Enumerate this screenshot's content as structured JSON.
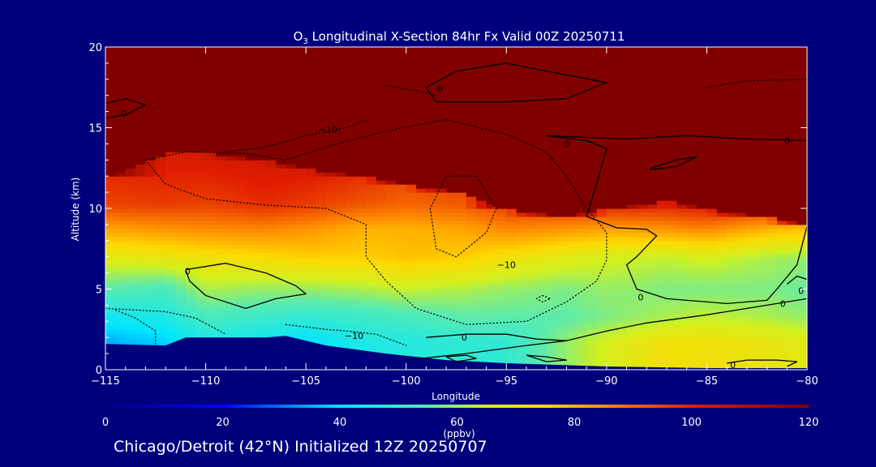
{
  "chart_data": {
    "type": "heatmap",
    "title": {
      "species": "O",
      "subscript": "3",
      "rest": " Longitudinal X-Section 84hr  Fx Valid 00Z 20250711"
    },
    "xlabel": "Longitude",
    "ylabel": "Altitude (km)",
    "xlim": [
      -115,
      -80
    ],
    "ylim": [
      0,
      20
    ],
    "x_ticks": [
      -115,
      -110,
      -105,
      -100,
      -95,
      -90,
      -85,
      -80
    ],
    "x_tick_labels": [
      "−115",
      "−110",
      "−105",
      "−100",
      "−95",
      "−90",
      "−85",
      "−80"
    ],
    "y_ticks": [
      0,
      5,
      10,
      15,
      20
    ],
    "colorbar": {
      "label": "(ppbv)",
      "min": 0,
      "max": 120,
      "ticks": [
        0,
        20,
        40,
        60,
        80,
        100,
        120
      ]
    },
    "columns": [
      {
        "lon": -115,
        "top": 12.0,
        "v": [
          null,
          35,
          42,
          55,
          68,
          82,
          95,
          105,
          120
        ]
      },
      {
        "lon": -112,
        "top": 13.5,
        "v": [
          null,
          38,
          45,
          52,
          70,
          84,
          96,
          106,
          120
        ]
      },
      {
        "lon": -110,
        "top": 13.5,
        "v": [
          null,
          44,
          52,
          62,
          72,
          85,
          95,
          108,
          120
        ]
      },
      {
        "lon": -107,
        "top": 13.0,
        "v": [
          null,
          42,
          50,
          60,
          74,
          86,
          98,
          108,
          120
        ]
      },
      {
        "lon": -105,
        "top": 12.5,
        "v": [
          null,
          40,
          48,
          60,
          76,
          84,
          96,
          110,
          120
        ]
      },
      {
        "lon": -102,
        "top": 12.0,
        "v": [
          null,
          45,
          50,
          62,
          76,
          80,
          92,
          108,
          120
        ]
      },
      {
        "lon": -100,
        "top": 11.5,
        "v": [
          null,
          46,
          52,
          64,
          78,
          80,
          90,
          104,
          120
        ]
      },
      {
        "lon": -97,
        "top": 11.0,
        "v": [
          null,
          48,
          55,
          62,
          76,
          82,
          92,
          104,
          120
        ]
      },
      {
        "lon": -95,
        "top": 10.0,
        "v": [
          null,
          48,
          55,
          60,
          72,
          86,
          96,
          108,
          120
        ]
      },
      {
        "lon": -92,
        "top": 9.5,
        "v": [
          null,
          60,
          55,
          58,
          68,
          84,
          98,
          110,
          120
        ]
      },
      {
        "lon": -90,
        "top": 10.0,
        "v": [
          null,
          66,
          58,
          60,
          66,
          82,
          100,
          110,
          120
        ]
      },
      {
        "lon": -87,
        "top": 10.5,
        "v": [
          null,
          72,
          62,
          58,
          64,
          84,
          100,
          110,
          120
        ]
      },
      {
        "lon": -85,
        "top": 10.0,
        "v": [
          null,
          72,
          64,
          58,
          66,
          86,
          102,
          110,
          120
        ]
      },
      {
        "lon": -82,
        "top": 9.5,
        "v": [
          null,
          70,
          62,
          58,
          62,
          80,
          100,
          110,
          120
        ]
      },
      {
        "lon": -80,
        "top": 9.0,
        "v": [
          null,
          68,
          60,
          56,
          60,
          78,
          98,
          110,
          120
        ]
      }
    ],
    "terrain": [
      [
        -115,
        1.6
      ],
      [
        -112,
        1.5
      ],
      [
        -111,
        2.0
      ],
      [
        -107,
        2.0
      ],
      [
        -106,
        2.1
      ],
      [
        -104,
        1.5
      ],
      [
        -101,
        1.0
      ],
      [
        -98,
        0.6
      ],
      [
        -95,
        0.4
      ],
      [
        -90,
        0.2
      ],
      [
        -85,
        0.1
      ],
      [
        -80,
        0.1
      ]
    ],
    "contours": [
      {
        "level": "0",
        "style": "solid",
        "points": [
          [
            -111,
            6.2
          ],
          [
            -109,
            6.6
          ],
          [
            -107,
            6.0
          ],
          [
            -105.5,
            5.2
          ],
          [
            -105,
            4.7
          ],
          [
            -106.5,
            4.4
          ],
          [
            -108,
            3.8
          ],
          [
            -110,
            4.6
          ],
          [
            -110.8,
            5.5
          ],
          [
            -111,
            6.2
          ]
        ]
      },
      {
        "level": "0",
        "style": "solid",
        "points": [
          [
            -115,
            16.5
          ],
          [
            -114,
            16.8
          ],
          [
            -113,
            16.4
          ],
          [
            -114,
            15.8
          ],
          [
            -115,
            15.6
          ]
        ]
      },
      {
        "level": "0",
        "style": "solid",
        "points": [
          [
            -99,
            17.5
          ],
          [
            -97.5,
            18.5
          ],
          [
            -95,
            19.0
          ],
          [
            -93,
            18.5
          ],
          [
            -90,
            17.8
          ],
          [
            -92,
            16.8
          ],
          [
            -95,
            16.6
          ],
          [
            -98.5,
            16.6
          ],
          [
            -99,
            17.5
          ]
        ]
      },
      {
        "level": "0",
        "style": "solid",
        "points": [
          [
            -93,
            14.5
          ],
          [
            -91,
            14.2
          ],
          [
            -90,
            13.7
          ],
          [
            -90.5,
            11.5
          ],
          [
            -91,
            9.5
          ],
          [
            -89.5,
            8.8
          ],
          [
            -88,
            8.7
          ],
          [
            -87.5,
            8.3
          ],
          [
            -88.5,
            7.0
          ],
          [
            -89,
            6.5
          ],
          [
            -88.5,
            5.0
          ],
          [
            -87,
            4.4
          ],
          [
            -84,
            4.1
          ],
          [
            -82,
            4.3
          ],
          [
            -81.5,
            5.0
          ],
          [
            -80.5,
            6.5
          ],
          [
            -80,
            8.9
          ]
        ]
      },
      {
        "level": "0",
        "style": "solid",
        "points": [
          [
            -93,
            14.5
          ],
          [
            -89,
            14.3
          ],
          [
            -86,
            14.5
          ],
          [
            -83,
            14.3
          ],
          [
            -80,
            14.2
          ]
        ]
      },
      {
        "level": "0",
        "style": "solid",
        "points": [
          [
            -87.8,
            12.5
          ],
          [
            -86.5,
            13.0
          ],
          [
            -85.5,
            13.2
          ],
          [
            -86.5,
            12.6
          ],
          [
            -87.8,
            12.4
          ],
          [
            -87.8,
            12.5
          ]
        ]
      },
      {
        "level": "0",
        "style": "solid",
        "points": [
          [
            -100,
            0.6
          ],
          [
            -97,
            1.0
          ],
          [
            -94,
            1.5
          ],
          [
            -92,
            1.8
          ],
          [
            -90,
            2.4
          ],
          [
            -88,
            2.9
          ],
          [
            -85,
            3.4
          ],
          [
            -83,
            3.8
          ],
          [
            -81,
            4.2
          ],
          [
            -80,
            4.4
          ]
        ]
      },
      {
        "level": "0",
        "style": "solid",
        "points": [
          [
            -99,
            2.0
          ],
          [
            -97,
            2.2
          ],
          [
            -95,
            2.2
          ],
          [
            -93.5,
            1.9
          ],
          [
            -92,
            1.8
          ]
        ]
      },
      {
        "level": "0",
        "style": "solid",
        "points": [
          [
            -98,
            0.8
          ],
          [
            -97,
            0.9
          ],
          [
            -96.5,
            0.7
          ],
          [
            -97.5,
            0.5
          ],
          [
            -98,
            0.8
          ]
        ]
      },
      {
        "level": "0",
        "style": "solid",
        "points": [
          [
            -94,
            0.9
          ],
          [
            -93,
            0.8
          ],
          [
            -92,
            0.6
          ],
          [
            -93,
            0.5
          ],
          [
            -94,
            0.9
          ]
        ]
      },
      {
        "level": "0",
        "style": "solid",
        "points": [
          [
            -84,
            0.4
          ],
          [
            -83,
            0.6
          ],
          [
            -81.5,
            0.6
          ],
          [
            -80.5,
            0.5
          ],
          [
            -81,
            0.2
          ]
        ]
      },
      {
        "level": "0",
        "style": "solid",
        "points": [
          [
            -81,
            5.3
          ],
          [
            -80.5,
            5.8
          ],
          [
            -80,
            5.6
          ]
        ]
      },
      {
        "level": "-10",
        "style": "dotted",
        "points": [
          [
            -113,
            13.0
          ],
          [
            -111,
            13.5
          ],
          [
            -108,
            13.4
          ],
          [
            -106,
            13.0
          ],
          [
            -104,
            13.8
          ],
          [
            -101,
            14.8
          ],
          [
            -98,
            15.5
          ],
          [
            -95,
            14.6
          ],
          [
            -93,
            13.5
          ],
          [
            -92,
            12.0
          ],
          [
            -91,
            10.0
          ],
          [
            -90,
            8.5
          ],
          [
            -90,
            6.8
          ],
          [
            -90.5,
            5.5
          ],
          [
            -92,
            4.2
          ],
          [
            -94,
            3.0
          ],
          [
            -97,
            2.8
          ],
          [
            -99.5,
            3.8
          ],
          [
            -101,
            5.5
          ],
          [
            -102,
            7.0
          ],
          [
            -102,
            9.0
          ],
          [
            -104,
            10.0
          ],
          [
            -107,
            10.2
          ],
          [
            -110,
            10.6
          ],
          [
            -112,
            11.5
          ],
          [
            -113,
            13.0
          ]
        ]
      },
      {
        "level": "-10",
        "style": "dotted",
        "points": [
          [
            -98,
            12.0
          ],
          [
            -96.5,
            12.0
          ],
          [
            -95.5,
            10.0
          ],
          [
            -96,
            8.5
          ],
          [
            -97.5,
            7.0
          ],
          [
            -98.5,
            7.5
          ],
          [
            -98.8,
            10.0
          ],
          [
            -98,
            12.0
          ]
        ]
      },
      {
        "level": "-10",
        "style": "dotted",
        "points": [
          [
            -109,
            13.5
          ],
          [
            -107,
            13.8
          ],
          [
            -105,
            14.5
          ],
          [
            -103,
            15.0
          ],
          [
            -102,
            15.5
          ]
        ]
      },
      {
        "level": "-10",
        "style": "dotted",
        "points": [
          [
            -115,
            3.8
          ],
          [
            -112,
            3.6
          ],
          [
            -110.5,
            3.2
          ],
          [
            -109,
            2.2
          ]
        ]
      },
      {
        "level": "-10",
        "style": "dotted",
        "points": [
          [
            -106,
            2.8
          ],
          [
            -104,
            2.5
          ],
          [
            -103,
            2.4
          ],
          [
            -101.5,
            2.2
          ],
          [
            -100,
            1.5
          ]
        ]
      },
      {
        "level": "-10",
        "style": "dotted",
        "points": [
          [
            -114.5,
            3.7
          ],
          [
            -113.5,
            3.2
          ],
          [
            -112.5,
            2.4
          ],
          [
            -112.5,
            1.6
          ]
        ]
      },
      {
        "level": "-10",
        "style": "dotted",
        "points": [
          [
            -85,
            17.5
          ],
          [
            -83,
            17.9
          ],
          [
            -80,
            18.0
          ]
        ]
      },
      {
        "level": "-10",
        "style": "dotted",
        "points": [
          [
            -101,
            17.6
          ],
          [
            -99.5,
            17.3
          ],
          [
            -98.5,
            17.0
          ]
        ]
      },
      {
        "level": "-10",
        "style": "dotted",
        "points": [
          [
            -93.2,
            4.6
          ],
          [
            -92.8,
            4.4
          ],
          [
            -93.2,
            4.2
          ],
          [
            -93.5,
            4.4
          ],
          [
            -93.2,
            4.6
          ]
        ]
      }
    ],
    "contour_labels": [
      {
        "text": "0",
        "x": -110.9,
        "y": 6.1
      },
      {
        "text": "0",
        "x": -114.1,
        "y": 15.9
      },
      {
        "text": "0",
        "x": -98.3,
        "y": 17.4
      },
      {
        "text": "0",
        "x": -92.0,
        "y": 14.0
      },
      {
        "text": "0",
        "x": -81.0,
        "y": 14.2
      },
      {
        "text": "0",
        "x": -88.3,
        "y": 4.5
      },
      {
        "text": "0",
        "x": -81.2,
        "y": 4.1
      },
      {
        "text": "0",
        "x": -80.3,
        "y": 4.9
      },
      {
        "text": "0",
        "x": -97.1,
        "y": 2.0
      },
      {
        "text": "0",
        "x": -83.7,
        "y": 0.3
      },
      {
        "text": "−10",
        "x": -103.9,
        "y": 14.9
      },
      {
        "text": "−10",
        "x": -95.0,
        "y": 6.5
      },
      {
        "text": "−10",
        "x": -102.6,
        "y": 2.1
      }
    ]
  },
  "footer": "Chicago/Detroit (42°N) Initialized 12Z 20250707",
  "colors": {
    "background": "#00007c",
    "text": "#ffffff",
    "contour": "#000000",
    "terrain": "#00007c"
  }
}
